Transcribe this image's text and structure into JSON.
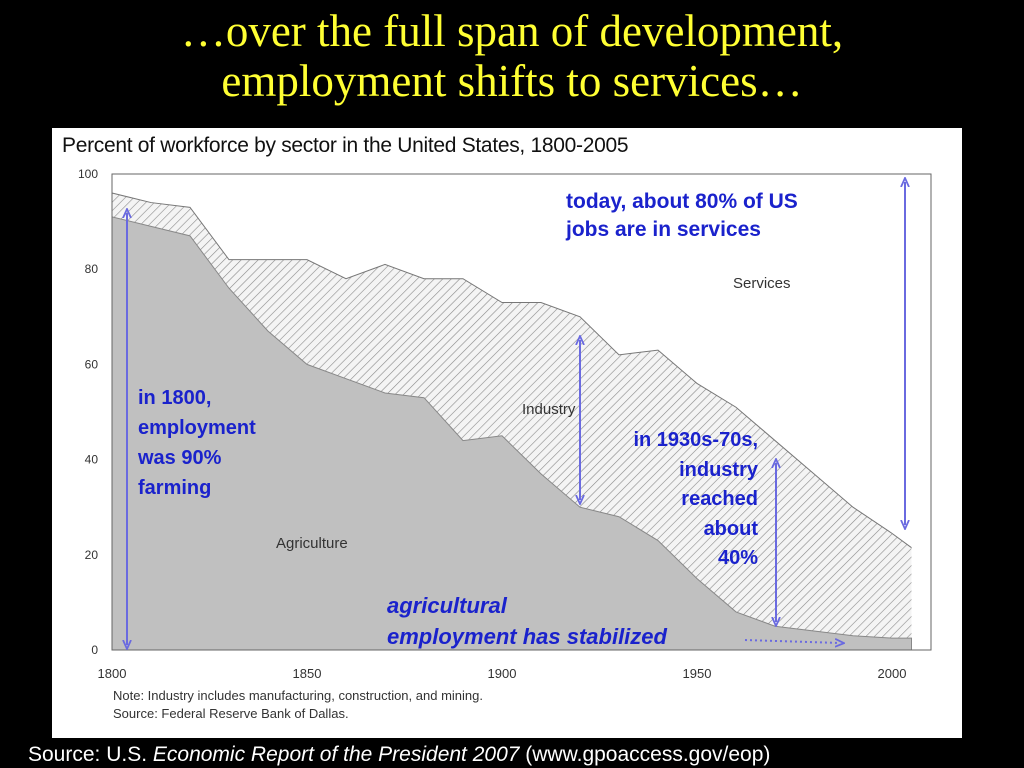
{
  "slide": {
    "title_line1": "…over the full span of development,",
    "title_line2": "employment shifts to services…"
  },
  "chart_data": {
    "type": "area",
    "title": "Percent of workforce by sector in the United States, 1800-2005",
    "x": [
      1800,
      1810,
      1820,
      1830,
      1840,
      1850,
      1860,
      1870,
      1880,
      1890,
      1900,
      1910,
      1920,
      1930,
      1940,
      1950,
      1960,
      1970,
      1980,
      1990,
      2000,
      2005
    ],
    "series": [
      {
        "name": "Agriculture",
        "values": [
          91,
          89,
          87,
          76,
          67,
          60,
          57,
          54,
          53,
          44,
          45,
          37,
          30,
          28,
          23,
          15,
          8,
          5,
          4,
          3,
          2.5,
          2.5
        ]
      },
      {
        "name": "Industry",
        "values": [
          5,
          5,
          6,
          6,
          15,
          22,
          21,
          27,
          25,
          34,
          28,
          36,
          40,
          34,
          40,
          41,
          43,
          39,
          33,
          27,
          22,
          19
        ]
      },
      {
        "name": "Services",
        "values": [
          4,
          6,
          7,
          18,
          18,
          18,
          22,
          19,
          22,
          22,
          27,
          27,
          30,
          38,
          37,
          44,
          49,
          56,
          63,
          70,
          75.5,
          78.5
        ]
      }
    ],
    "series_colors": {
      "Agriculture": "#c0c0c0",
      "Industry": "hatched",
      "Services": "#ffffff"
    },
    "xlim": [
      1800,
      2010
    ],
    "ylim": [
      0,
      100
    ],
    "xticks": [
      1800,
      1850,
      1900,
      1950,
      2000
    ],
    "yticks": [
      0,
      20,
      40,
      60,
      80,
      100
    ],
    "region_labels": [
      "Services",
      "Industry",
      "Agriculture"
    ],
    "notes": [
      "Note: Industry includes manufacturing, construction, and mining.",
      "Source: Federal Reserve Bank of Dallas."
    ]
  },
  "annotations": {
    "services_note": [
      "today, about 80% of US",
      "jobs are in services"
    ],
    "farming_note": [
      "in 1800,",
      "employment",
      "was 90%",
      "farming"
    ],
    "industry_note": [
      "in 1930s-70s,",
      "industry",
      "reached",
      "about",
      "40%"
    ],
    "agri_note": [
      "agricultural",
      "employment has stabilized"
    ],
    "annotation_color": "#1a22cc",
    "arrow_color": "#6a6ae0"
  },
  "source": {
    "prefix": "Source:  U.S. ",
    "italic": "Economic Report of the President 2007",
    "suffix": " (www.gpoaccess.gov/eop)"
  }
}
